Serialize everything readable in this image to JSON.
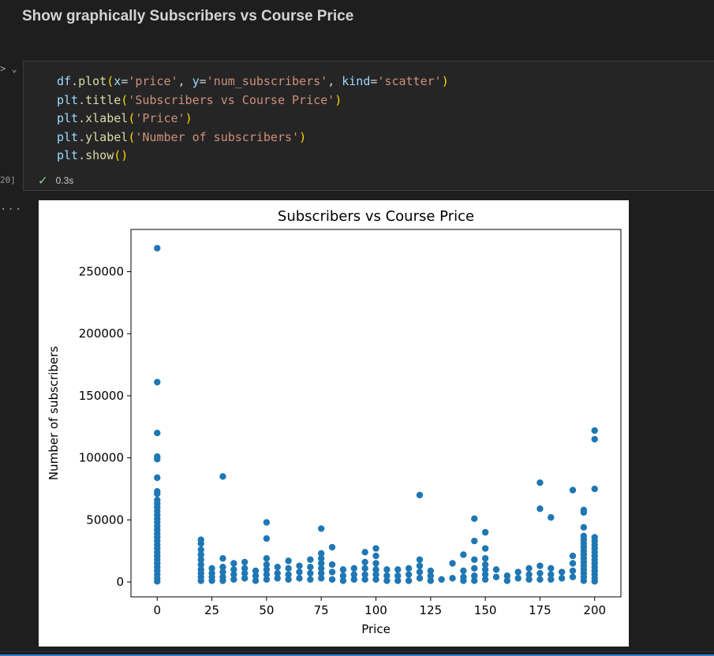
{
  "markdown": {
    "heading": "Show graphically Subscribers vs Course Price"
  },
  "cell": {
    "gutter_glyph": "> ⌄",
    "execution_count": "20]",
    "code_lines": [
      [
        {
          "t": "df",
          "c": "var"
        },
        {
          "t": ".",
          "c": "pn"
        },
        {
          "t": "plot",
          "c": "fn"
        },
        {
          "t": "(",
          "c": "br"
        },
        {
          "t": "x",
          "c": "var"
        },
        {
          "t": "=",
          "c": "pn"
        },
        {
          "t": "'price'",
          "c": "str"
        },
        {
          "t": ", ",
          "c": "pn"
        },
        {
          "t": "y",
          "c": "var"
        },
        {
          "t": "=",
          "c": "pn"
        },
        {
          "t": "'num_subscribers'",
          "c": "str"
        },
        {
          "t": ", ",
          "c": "pn"
        },
        {
          "t": "kind",
          "c": "var"
        },
        {
          "t": "=",
          "c": "pn"
        },
        {
          "t": "'scatter'",
          "c": "str"
        },
        {
          "t": ")",
          "c": "br"
        }
      ],
      [
        {
          "t": "plt",
          "c": "var"
        },
        {
          "t": ".",
          "c": "pn"
        },
        {
          "t": "title",
          "c": "fn"
        },
        {
          "t": "(",
          "c": "br"
        },
        {
          "t": "'Subscribers vs Course Price'",
          "c": "str"
        },
        {
          "t": ")",
          "c": "br"
        }
      ],
      [
        {
          "t": "plt",
          "c": "var"
        },
        {
          "t": ".",
          "c": "pn"
        },
        {
          "t": "xlabel",
          "c": "fn"
        },
        {
          "t": "(",
          "c": "br"
        },
        {
          "t": "'Price'",
          "c": "str"
        },
        {
          "t": ")",
          "c": "br"
        }
      ],
      [
        {
          "t": "plt",
          "c": "var"
        },
        {
          "t": ".",
          "c": "pn"
        },
        {
          "t": "ylabel",
          "c": "fn"
        },
        {
          "t": "(",
          "c": "br"
        },
        {
          "t": "'Number of subscribers'",
          "c": "str"
        },
        {
          "t": ")",
          "c": "br"
        }
      ],
      [
        {
          "t": "plt",
          "c": "var"
        },
        {
          "t": ".",
          "c": "pn"
        },
        {
          "t": "show",
          "c": "fn"
        },
        {
          "t": "()",
          "c": "br"
        }
      ]
    ],
    "status_icon": "check-icon",
    "status_time": "0.3s",
    "output_prompt": "..."
  },
  "colors": {
    "marker": "#1f77b4",
    "success": "#89d185"
  },
  "chart_data": {
    "type": "scatter",
    "title": "Subscribers vs Course Price",
    "xlabel": "Price",
    "ylabel": "Number of subscribers",
    "xlim": [
      -12,
      212
    ],
    "ylim": [
      -12000,
      284000
    ],
    "xticks": [
      0,
      25,
      50,
      75,
      100,
      125,
      150,
      175,
      200
    ],
    "yticks": [
      0,
      50000,
      100000,
      150000,
      200000,
      250000
    ],
    "grid": false,
    "points": [
      [
        0,
        268900
      ],
      [
        0,
        161000
      ],
      [
        0,
        120000
      ],
      [
        0,
        101000
      ],
      [
        0,
        99000
      ],
      [
        0,
        84000
      ],
      [
        0,
        73000
      ],
      [
        0,
        71000
      ],
      [
        0,
        66000
      ],
      [
        0,
        63000
      ],
      [
        0,
        60000
      ],
      [
        0,
        57000
      ],
      [
        0,
        54000
      ],
      [
        0,
        51000
      ],
      [
        0,
        48000
      ],
      [
        0,
        45000
      ],
      [
        0,
        42000
      ],
      [
        0,
        39000
      ],
      [
        0,
        36000
      ],
      [
        0,
        33000
      ],
      [
        0,
        30000
      ],
      [
        0,
        27000
      ],
      [
        0,
        24000
      ],
      [
        0,
        21000
      ],
      [
        0,
        18000
      ],
      [
        0,
        15000
      ],
      [
        0,
        12000
      ],
      [
        0,
        9000
      ],
      [
        0,
        6000
      ],
      [
        0,
        3000
      ],
      [
        0,
        500
      ],
      [
        20,
        34000
      ],
      [
        20,
        31000
      ],
      [
        20,
        26000
      ],
      [
        20,
        22000
      ],
      [
        20,
        18000
      ],
      [
        20,
        14000
      ],
      [
        20,
        10000
      ],
      [
        20,
        7000
      ],
      [
        20,
        4000
      ],
      [
        20,
        1000
      ],
      [
        25,
        11000
      ],
      [
        25,
        7000
      ],
      [
        25,
        4000
      ],
      [
        25,
        1000
      ],
      [
        30,
        85000
      ],
      [
        30,
        19000
      ],
      [
        30,
        12000
      ],
      [
        30,
        8000
      ],
      [
        30,
        4000
      ],
      [
        30,
        1000
      ],
      [
        35,
        15000
      ],
      [
        35,
        10000
      ],
      [
        35,
        6000
      ],
      [
        35,
        2000
      ],
      [
        40,
        16000
      ],
      [
        40,
        11000
      ],
      [
        40,
        7000
      ],
      [
        40,
        3000
      ],
      [
        45,
        9000
      ],
      [
        45,
        5000
      ],
      [
        45,
        1000
      ],
      [
        50,
        48000
      ],
      [
        50,
        35000
      ],
      [
        50,
        19000
      ],
      [
        50,
        14000
      ],
      [
        50,
        10000
      ],
      [
        50,
        6000
      ],
      [
        50,
        2000
      ],
      [
        55,
        12000
      ],
      [
        55,
        7000
      ],
      [
        55,
        3000
      ],
      [
        60,
        17000
      ],
      [
        60,
        11000
      ],
      [
        60,
        6000
      ],
      [
        60,
        2000
      ],
      [
        65,
        13000
      ],
      [
        65,
        8000
      ],
      [
        65,
        3000
      ],
      [
        70,
        18000
      ],
      [
        70,
        12000
      ],
      [
        70,
        7000
      ],
      [
        70,
        2000
      ],
      [
        75,
        43000
      ],
      [
        75,
        23000
      ],
      [
        75,
        19000
      ],
      [
        75,
        15000
      ],
      [
        75,
        11000
      ],
      [
        75,
        7000
      ],
      [
        75,
        3000
      ],
      [
        80,
        28000
      ],
      [
        80,
        14000
      ],
      [
        80,
        8000
      ],
      [
        80,
        2000
      ],
      [
        85,
        10000
      ],
      [
        85,
        5000
      ],
      [
        85,
        1000
      ],
      [
        90,
        11000
      ],
      [
        90,
        6000
      ],
      [
        90,
        2000
      ],
      [
        95,
        24000
      ],
      [
        95,
        16000
      ],
      [
        95,
        11000
      ],
      [
        95,
        6000
      ],
      [
        95,
        2000
      ],
      [
        100,
        27000
      ],
      [
        100,
        21000
      ],
      [
        100,
        15000
      ],
      [
        100,
        10000
      ],
      [
        100,
        6000
      ],
      [
        100,
        2000
      ],
      [
        105,
        10000
      ],
      [
        105,
        5000
      ],
      [
        105,
        1000
      ],
      [
        110,
        10000
      ],
      [
        110,
        5000
      ],
      [
        110,
        1000
      ],
      [
        115,
        11000
      ],
      [
        115,
        6000
      ],
      [
        115,
        1000
      ],
      [
        120,
        70000
      ],
      [
        120,
        18000
      ],
      [
        120,
        13000
      ],
      [
        120,
        8000
      ],
      [
        120,
        3000
      ],
      [
        125,
        9000
      ],
      [
        125,
        5000
      ],
      [
        125,
        1000
      ],
      [
        130,
        2000
      ],
      [
        135,
        15000
      ],
      [
        135,
        3000
      ],
      [
        140,
        22000
      ],
      [
        140,
        9000
      ],
      [
        140,
        4000
      ],
      [
        140,
        1000
      ],
      [
        145,
        51000
      ],
      [
        145,
        33000
      ],
      [
        145,
        18000
      ],
      [
        145,
        11000
      ],
      [
        145,
        5000
      ],
      [
        145,
        1000
      ],
      [
        150,
        40000
      ],
      [
        150,
        27000
      ],
      [
        150,
        19000
      ],
      [
        150,
        14000
      ],
      [
        150,
        10000
      ],
      [
        150,
        6000
      ],
      [
        150,
        2000
      ],
      [
        155,
        10000
      ],
      [
        155,
        4000
      ],
      [
        160,
        5000
      ],
      [
        160,
        1000
      ],
      [
        165,
        8000
      ],
      [
        165,
        3000
      ],
      [
        170,
        11000
      ],
      [
        170,
        6000
      ],
      [
        170,
        2000
      ],
      [
        175,
        80000
      ],
      [
        175,
        59000
      ],
      [
        175,
        13000
      ],
      [
        175,
        7000
      ],
      [
        175,
        2000
      ],
      [
        180,
        52000
      ],
      [
        180,
        11000
      ],
      [
        180,
        6000
      ],
      [
        180,
        2000
      ],
      [
        185,
        8000
      ],
      [
        185,
        3000
      ],
      [
        190,
        74000
      ],
      [
        190,
        21000
      ],
      [
        190,
        15000
      ],
      [
        190,
        9000
      ],
      [
        190,
        4000
      ],
      [
        195,
        58000
      ],
      [
        195,
        56000
      ],
      [
        195,
        44000
      ],
      [
        195,
        37000
      ],
      [
        195,
        34000
      ],
      [
        195,
        31000
      ],
      [
        195,
        28000
      ],
      [
        195,
        25000
      ],
      [
        195,
        22000
      ],
      [
        195,
        19000
      ],
      [
        195,
        16000
      ],
      [
        195,
        13000
      ],
      [
        195,
        10000
      ],
      [
        195,
        7000
      ],
      [
        195,
        4000
      ],
      [
        195,
        1000
      ],
      [
        200,
        122000
      ],
      [
        200,
        115000
      ],
      [
        200,
        75000
      ],
      [
        200,
        36000
      ],
      [
        200,
        33000
      ],
      [
        200,
        30000
      ],
      [
        200,
        27000
      ],
      [
        200,
        24000
      ],
      [
        200,
        21000
      ],
      [
        200,
        18000
      ],
      [
        200,
        15000
      ],
      [
        200,
        12000
      ],
      [
        200,
        9000
      ],
      [
        200,
        6000
      ],
      [
        200,
        3000
      ],
      [
        200,
        500
      ]
    ]
  }
}
